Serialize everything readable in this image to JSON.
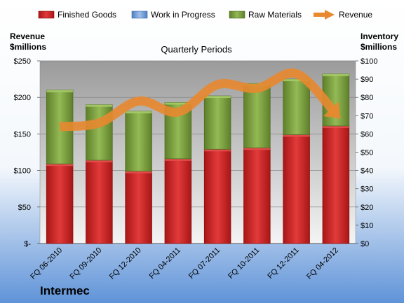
{
  "company": "Intermec",
  "chart_data": {
    "type": "bar",
    "subtitle": "Quarterly Periods",
    "categories": [
      "FQ 06-2010",
      "FQ 09-2010",
      "FQ 12-2010",
      "FQ 04-2011",
      "FQ 07-2011",
      "FQ 10-2011",
      "FQ 12-2011",
      "FQ 04-2012"
    ],
    "series": [
      {
        "name": "Finished Goods",
        "axis": "left",
        "stacked": true,
        "color": "#cc1f1f",
        "values": [
          109,
          114,
          99,
          116,
          129,
          131,
          149,
          161
        ]
      },
      {
        "name": "Work in Progress",
        "axis": "left",
        "stacked": true,
        "color": "#6f9bd6",
        "values": [
          0,
          0,
          0,
          0,
          0,
          0,
          0,
          0
        ]
      },
      {
        "name": "Raw Materials",
        "axis": "left",
        "stacked": true,
        "color": "#7ba03a",
        "values": [
          101,
          76,
          82,
          77,
          73,
          88,
          76,
          71
        ]
      },
      {
        "name": "Revenue",
        "axis": "right",
        "type": "line",
        "color": "#e8882f",
        "values": [
          64,
          66,
          78,
          72,
          87,
          85,
          93,
          71
        ]
      }
    ],
    "y_left": {
      "title_line1": "Revenue",
      "title_line2": "$millions",
      "min": 0,
      "max": 250,
      "ticks": [
        0,
        50,
        100,
        150,
        200,
        250
      ],
      "tick_labels": [
        "$-",
        "$50",
        "$100",
        "$150",
        "$200",
        "$250"
      ]
    },
    "y_right": {
      "title_line1": "Inventory",
      "title_line2": "$millions",
      "min": 0,
      "max": 100,
      "ticks": [
        0,
        10,
        20,
        30,
        40,
        50,
        60,
        70,
        80,
        90,
        100
      ],
      "tick_labels": [
        "$0",
        "$10",
        "$20",
        "$30",
        "$40",
        "$50",
        "$60",
        "$70",
        "$80",
        "$90",
        "$100"
      ]
    },
    "legend_position": "top",
    "grid": true
  }
}
